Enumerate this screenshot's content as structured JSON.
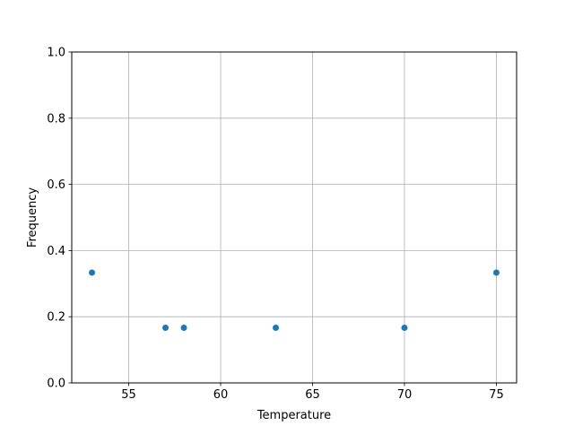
{
  "chart_data": {
    "type": "scatter",
    "title": "",
    "xlabel": "Temperature",
    "ylabel": "Frequency",
    "xlim": [
      51.9,
      76.1
    ],
    "ylim": [
      0.0,
      1.0
    ],
    "xticks": [
      55,
      60,
      65,
      70,
      75
    ],
    "xtick_labels": [
      "55",
      "60",
      "65",
      "70",
      "75"
    ],
    "yticks": [
      0.0,
      0.2,
      0.4,
      0.6,
      0.8,
      1.0
    ],
    "ytick_labels": [
      "0.0",
      "0.2",
      "0.4",
      "0.6",
      "0.8",
      "1.0"
    ],
    "grid": true,
    "x": [
      53,
      57,
      58,
      63,
      70,
      75
    ],
    "y": [
      0.3333,
      0.1667,
      0.1667,
      0.1667,
      0.1667,
      0.3333
    ],
    "color": "#1f77b4",
    "grid_color": "#b0b0b0"
  }
}
